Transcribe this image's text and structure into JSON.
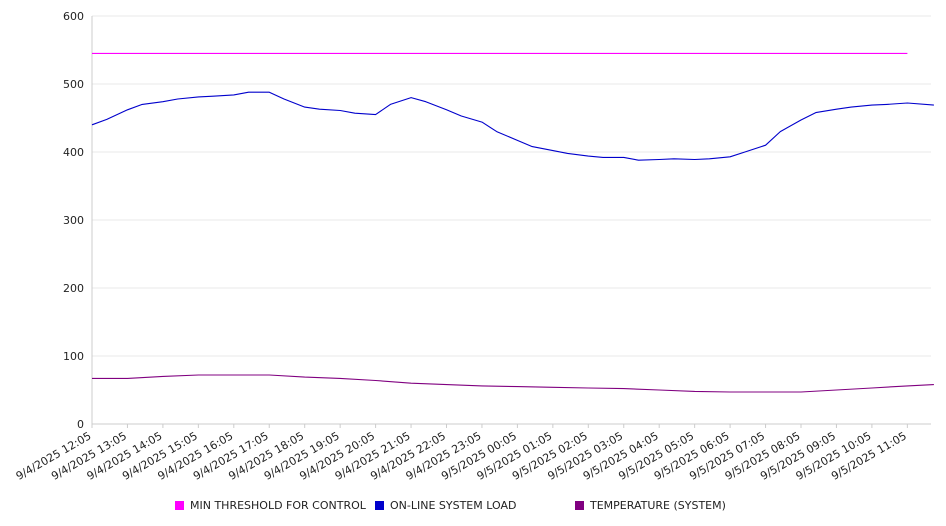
{
  "chart_data": {
    "type": "line",
    "title": "",
    "xlabel": "",
    "ylabel": "",
    "ylim": [
      0,
      600
    ],
    "yticks": [
      0,
      100,
      200,
      300,
      400,
      500,
      600
    ],
    "grid": true,
    "legend_position": "bottom",
    "x_tick_labels": [
      "9/4/2025 12:05",
      "9/4/2025 13:05",
      "9/4/2025 14:05",
      "9/4/2025 15:05",
      "9/4/2025 16:05",
      "9/4/2025 17:05",
      "9/4/2025 18:05",
      "9/4/2025 19:05",
      "9/4/2025 20:05",
      "9/4/2025 21:05",
      "9/4/2025 22:05",
      "9/4/2025 23:05",
      "9/5/2025 00:05",
      "9/5/2025 01:05",
      "9/5/2025 02:05",
      "9/5/2025 03:05",
      "9/5/2025 04:05",
      "9/5/2025 05:05",
      "9/5/2025 06:05",
      "9/5/2025 07:05",
      "9/5/2025 08:05",
      "9/5/2025 09:05",
      "9/5/2025 10:05",
      "9/5/2025 11:05"
    ],
    "series": [
      {
        "name": "MIN THRESHOLD FOR CONTROL",
        "color": "#ff00ff",
        "x": [
          "9/4/2025 12:05",
          "9/5/2025 11:05"
        ],
        "values": [
          545,
          545
        ]
      },
      {
        "name": "ON-LINE SYSTEM LOAD",
        "color": "#0000cc",
        "x": [
          "9/4/2025 12:05",
          "9/4/2025 12:30",
          "9/4/2025 13:05",
          "9/4/2025 13:30",
          "9/4/2025 14:05",
          "9/4/2025 14:30",
          "9/4/2025 15:05",
          "9/4/2025 15:30",
          "9/4/2025 16:05",
          "9/4/2025 16:30",
          "9/4/2025 17:05",
          "9/4/2025 17:30",
          "9/4/2025 18:05",
          "9/4/2025 18:30",
          "9/4/2025 19:05",
          "9/4/2025 19:30",
          "9/4/2025 20:05",
          "9/4/2025 20:30",
          "9/4/2025 21:05",
          "9/4/2025 21:30",
          "9/4/2025 22:05",
          "9/4/2025 22:30",
          "9/4/2025 23:05",
          "9/4/2025 23:30",
          "9/5/2025 00:05",
          "9/5/2025 00:30",
          "9/5/2025 01:05",
          "9/5/2025 01:30",
          "9/5/2025 02:05",
          "9/5/2025 02:30",
          "9/5/2025 03:05",
          "9/5/2025 03:30",
          "9/5/2025 04:05",
          "9/5/2025 04:30",
          "9/5/2025 05:05",
          "9/5/2025 05:30",
          "9/5/2025 06:05",
          "9/5/2025 06:30",
          "9/5/2025 07:05",
          "9/5/2025 07:30",
          "9/5/2025 08:05",
          "9/5/2025 08:30",
          "9/5/2025 09:05",
          "9/5/2025 09:30",
          "9/5/2025 10:05",
          "9/5/2025 10:30",
          "9/5/2025 11:05",
          "9/5/2025 11:50"
        ],
        "values": [
          440,
          448,
          462,
          470,
          474,
          478,
          481,
          482,
          484,
          488,
          488,
          478,
          466,
          463,
          461,
          457,
          455,
          470,
          480,
          474,
          462,
          453,
          444,
          430,
          417,
          408,
          402,
          398,
          394,
          392,
          392,
          388,
          389,
          390,
          389,
          390,
          393,
          400,
          410,
          430,
          447,
          458,
          463,
          466,
          469,
          470,
          472,
          469
        ]
      },
      {
        "name": "TEMPERATURE (SYSTEM)",
        "color": "#800080",
        "x": [
          "9/4/2025 12:05",
          "9/4/2025 13:05",
          "9/4/2025 14:05",
          "9/4/2025 15:05",
          "9/4/2025 16:05",
          "9/4/2025 17:05",
          "9/4/2025 18:05",
          "9/4/2025 19:05",
          "9/4/2025 20:05",
          "9/4/2025 21:05",
          "9/4/2025 22:05",
          "9/4/2025 23:05",
          "9/5/2025 00:05",
          "9/5/2025 01:05",
          "9/5/2025 02:05",
          "9/5/2025 03:05",
          "9/5/2025 04:05",
          "9/5/2025 05:05",
          "9/5/2025 06:05",
          "9/5/2025 07:05",
          "9/5/2025 08:05",
          "9/5/2025 09:05",
          "9/5/2025 10:05",
          "9/5/2025 11:05",
          "9/5/2025 11:50"
        ],
        "values": [
          67,
          67,
          70,
          72,
          72,
          72,
          69,
          67,
          64,
          60,
          58,
          56,
          55,
          54,
          53,
          52,
          50,
          48,
          47,
          47,
          47,
          50,
          53,
          56,
          58
        ]
      }
    ]
  }
}
